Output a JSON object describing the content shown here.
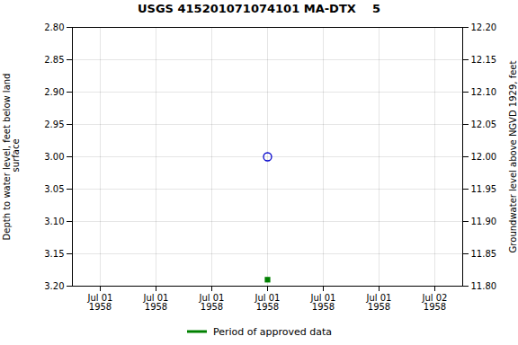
{
  "chart_data": {
    "type": "scatter",
    "title": "USGS 415201071074101 MA-DTX    5",
    "ylabel": "Depth to water level, feet below land\n surface",
    "y2label": "Groundwater level above NGVD 1929, feet",
    "categories": [
      "Jul 01\n1958",
      "Jul 01\n1958",
      "Jul 01\n1958",
      "Jul 01\n1958",
      "Jul 01\n1958",
      "Jul 01\n1958",
      "Jul 02\n1958"
    ],
    "series": [
      {
        "color": "#0000cc",
        "marker": "circle-open",
        "values": [
          null,
          null,
          null,
          3.0,
          null,
          null,
          null
        ]
      },
      {
        "name": "Period of approved data",
        "color": "#008000",
        "marker": "square",
        "values": [
          null,
          null,
          null,
          3.19,
          null,
          null,
          null
        ]
      }
    ],
    "ylim": [
      3.2,
      2.8
    ],
    "yticks": [
      {
        "value": 2.8,
        "label": "2.80"
      },
      2.85,
      {
        "value": 2.9,
        "label": "2.90"
      },
      2.95,
      {
        "value": 3.0,
        "label": "3.00"
      },
      3.05,
      {
        "value": 3.1,
        "label": "3.10"
      },
      3.15,
      {
        "value": 3.2,
        "label": "3.20"
      }
    ],
    "y2lim": [
      11.8,
      12.2
    ],
    "y2ticks": [
      {
        "value": 11.8,
        "label": "11.80"
      },
      11.85,
      {
        "value": 11.9,
        "label": "11.90"
      },
      11.95,
      {
        "value": 12.0,
        "label": "12.00"
      },
      12.05,
      {
        "value": 12.1,
        "label": "12.10"
      },
      12.15,
      {
        "value": 12.2,
        "label": "12.20"
      }
    ],
    "grid": true,
    "legend": "bottom"
  }
}
